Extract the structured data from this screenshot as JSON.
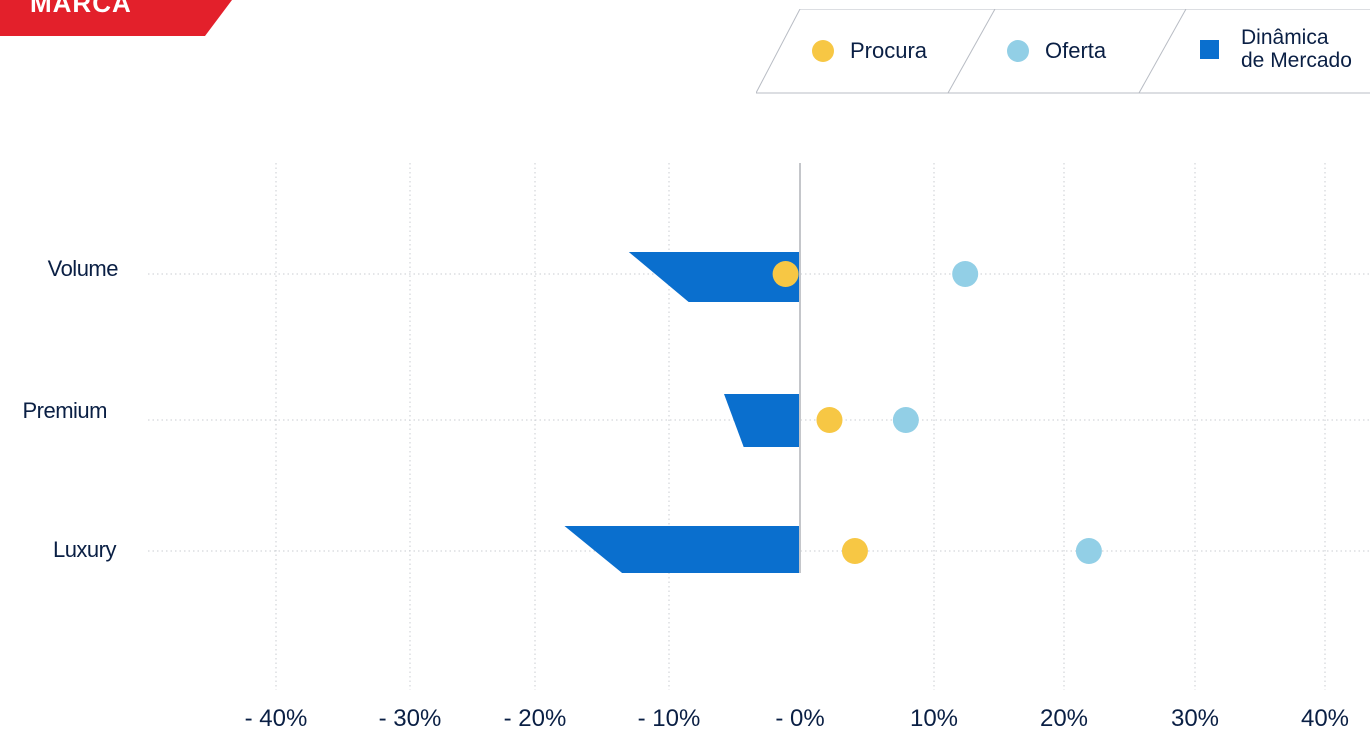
{
  "header": {
    "tag": "MARCA",
    "tag_color": "#e3202b"
  },
  "legend": {
    "items": [
      {
        "label": "Procura",
        "color": "#f7c744",
        "shape": "circle"
      },
      {
        "label": "Oferta",
        "color": "#92cfe6",
        "shape": "circle"
      },
      {
        "label_line1": "Dinâmica",
        "label_line2": "de Mercado",
        "color": "#0a6fce",
        "shape": "square"
      }
    ]
  },
  "chart_data": {
    "type": "scatter",
    "categories": [
      "Volume",
      "Premium",
      "Luxury"
    ],
    "x_ticks": [
      "- 40%",
      "- 30%",
      "- 20%",
      "- 10%",
      "- 0%",
      "10%",
      "20%",
      "30%",
      "40%"
    ],
    "xlim": [
      -40,
      40
    ],
    "grid": true,
    "series": [
      {
        "name": "Procura",
        "color": "#f7c744",
        "values": [
          -1.1,
          2.2,
          4.1
        ]
      },
      {
        "name": "Oferta",
        "color": "#92cfe6",
        "values": [
          12.4,
          7.9,
          21.9
        ]
      },
      {
        "name": "Dinâmica de Mercado",
        "color": "#0a6fce",
        "shape": "trapezoid",
        "values_top": [
          -13,
          -5.8,
          -17.8
        ],
        "values_bottom": [
          -8.5,
          -4.3,
          -13.5
        ]
      }
    ]
  }
}
